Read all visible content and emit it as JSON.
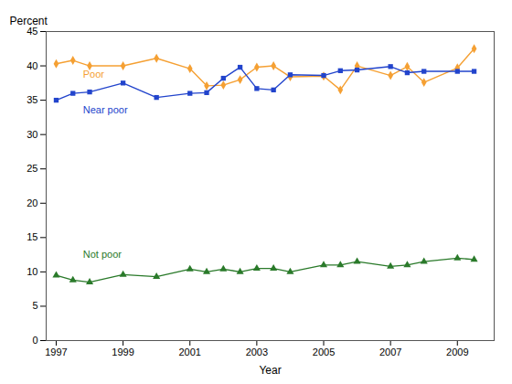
{
  "chart_data": {
    "type": "line",
    "xlabel": "Year",
    "ylabel": "Percent",
    "x": [
      1997,
      1997.5,
      1998,
      1999,
      2000,
      2001,
      2001.5,
      2002,
      2002.5,
      2003,
      2003.5,
      2004,
      2005,
      2005.5,
      2006,
      2007,
      2007.5,
      2008,
      2009,
      2009.5
    ],
    "series": [
      {
        "name": "Poor",
        "color": "#f5a033",
        "marker": "diamond",
        "values": [
          40.3,
          40.8,
          40.0,
          40.0,
          41.1,
          39.6,
          37.1,
          37.2,
          38.0,
          39.8,
          40.0,
          38.4,
          38.5,
          36.5,
          40.0,
          38.6,
          39.9,
          37.6,
          39.7,
          42.5
        ]
      },
      {
        "name": "Near poor",
        "color": "#2244cc",
        "marker": "square",
        "values": [
          35.0,
          36.0,
          36.2,
          37.5,
          35.4,
          36.0,
          36.1,
          38.2,
          39.8,
          36.7,
          36.5,
          38.7,
          38.6,
          39.3,
          39.4,
          39.9,
          39.0,
          39.2,
          39.2,
          39.2
        ]
      },
      {
        "name": "Not poor",
        "color": "#2a7a2a",
        "marker": "triangle",
        "values": [
          9.5,
          8.8,
          8.5,
          9.6,
          9.3,
          10.4,
          10.0,
          10.4,
          10.0,
          10.5,
          10.5,
          10.0,
          11.0,
          11.0,
          11.5,
          10.8,
          11.0,
          11.5,
          12.0,
          11.8
        ]
      }
    ],
    "annotations": [
      {
        "text": "Poor",
        "x": 1997.8,
        "y": 38.8,
        "color": "#f5a033"
      },
      {
        "text": "Near poor",
        "x": 1997.8,
        "y": 33.5,
        "color": "#2244cc"
      },
      {
        "text": "Not poor",
        "x": 1997.8,
        "y": 12.5,
        "color": "#2a7a2a"
      }
    ],
    "xlim": [
      1996.7,
      2010.1
    ],
    "ylim": [
      0,
      45
    ],
    "xticks": [
      1997,
      1999,
      2001,
      2003,
      2005,
      2007,
      2009
    ],
    "yticks": [
      0,
      5,
      10,
      15,
      20,
      25,
      30,
      35,
      40,
      45
    ]
  }
}
